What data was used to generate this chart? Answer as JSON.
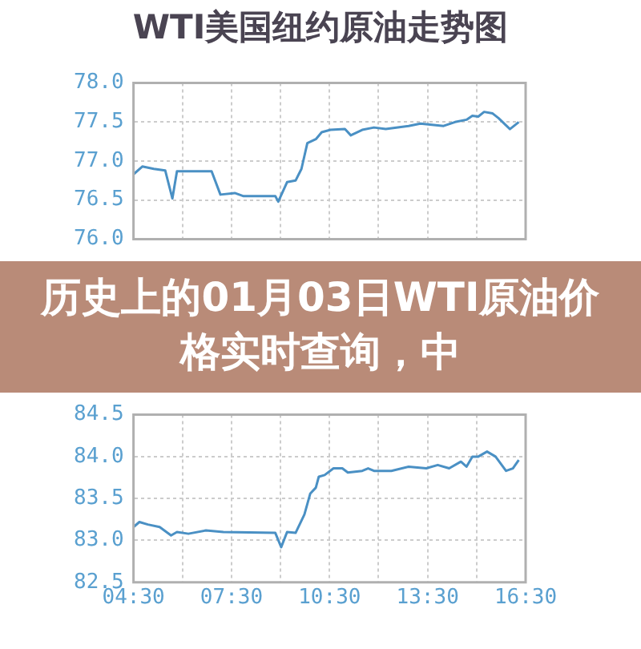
{
  "chart_data": [
    {
      "type": "line",
      "title": "WTI美国纽约原油走势图",
      "xlim": [
        4.5,
        16.5
      ],
      "ylim": [
        76.0,
        78.0
      ],
      "yticks": [
        {
          "value": 76,
          "label": "76.0"
        },
        {
          "value": 76.5,
          "label": "76.5"
        },
        {
          "value": 77,
          "label": "77.0"
        },
        {
          "value": 77.5,
          "label": "77.5"
        },
        {
          "value": 78,
          "label": "78.0"
        }
      ],
      "xticks": [
        {
          "value": 4.5,
          "label": null
        },
        {
          "value": 6,
          "label": null
        },
        {
          "value": 7.5,
          "label": null
        },
        {
          "value": 9,
          "label": null
        },
        {
          "value": 10.5,
          "label": null
        },
        {
          "value": 12,
          "label": null
        },
        {
          "value": 13.5,
          "label": null
        },
        {
          "value": 15,
          "label": null
        },
        {
          "value": 16.5,
          "label": null
        }
      ],
      "tick_labels": "y",
      "grid": true,
      "legend": false,
      "x": [
        4.5,
        4.77,
        5.12,
        5.47,
        5.69,
        5.83,
        6.89,
        7.16,
        7.6,
        7.87,
        8.84,
        8.93,
        9.2,
        9.46,
        9.64,
        9.82,
        10.08,
        10.26,
        10.53,
        10.97,
        11.15,
        11.5,
        11.86,
        12.22,
        12.92,
        13.28,
        13.99,
        14.34,
        14.69,
        14.87,
        15.05,
        15.23,
        15.49,
        15.67,
        16.02,
        16.29
      ],
      "series": [
        {
          "color": "#4a90c4",
          "values": [
            76.83,
            76.93,
            76.9,
            76.88,
            76.52,
            76.87,
            76.87,
            76.57,
            76.59,
            76.55,
            76.55,
            76.48,
            76.73,
            76.75,
            76.9,
            77.23,
            77.28,
            77.37,
            77.4,
            77.41,
            77.33,
            77.4,
            77.43,
            77.41,
            77.45,
            77.48,
            77.45,
            77.5,
            77.53,
            77.58,
            77.57,
            77.63,
            77.61,
            77.55,
            77.41,
            77.5
          ]
        }
      ]
    },
    {
      "type": "other",
      "title": "历史上的01月03日WTI原油价格实时查询，中"
    },
    {
      "type": "line",
      "xlim": [
        4.5,
        16.5
      ],
      "ylim": [
        82.5,
        84.5
      ],
      "yticks": [
        {
          "value": 82.5,
          "label": "82.5"
        },
        {
          "value": 83,
          "label": "83.0"
        },
        {
          "value": 83.5,
          "label": "83.5"
        },
        {
          "value": 84,
          "label": "84.0"
        },
        {
          "value": 84.5,
          "label": "84.5"
        }
      ],
      "xticks": [
        {
          "value": 4.5,
          "label": "04:30"
        },
        {
          "value": 6,
          "label": null
        },
        {
          "value": 7.5,
          "label": "07:30"
        },
        {
          "value": 9,
          "label": null
        },
        {
          "value": 10.5,
          "label": "10:30"
        },
        {
          "value": 12,
          "label": null
        },
        {
          "value": 13.5,
          "label": "13:30"
        },
        {
          "value": 15,
          "label": null
        },
        {
          "value": 16.5,
          "label": "16:30"
        }
      ],
      "grid": true,
      "legend": false,
      "x": [
        4.5,
        4.68,
        4.94,
        5.3,
        5.65,
        5.83,
        6.18,
        6.72,
        7.25,
        8.84,
        9.02,
        9.2,
        9.46,
        9.73,
        9.91,
        10.08,
        10.17,
        10.35,
        10.62,
        10.89,
        11.06,
        11.5,
        11.68,
        11.86,
        12.39,
        12.92,
        13.46,
        13.81,
        14.16,
        14.52,
        14.69,
        14.87,
        15.05,
        15.32,
        15.58,
        15.9,
        16.11,
        16.29
      ],
      "series": [
        {
          "color": "#4a90c4",
          "values": [
            83.16,
            83.22,
            83.19,
            83.16,
            83.06,
            83.1,
            83.08,
            83.12,
            83.1,
            83.09,
            82.92,
            83.1,
            83.09,
            83.31,
            83.56,
            83.63,
            83.76,
            83.78,
            83.86,
            83.86,
            83.81,
            83.83,
            83.86,
            83.83,
            83.83,
            83.88,
            83.86,
            83.9,
            83.86,
            83.94,
            83.88,
            84.0,
            84.0,
            84.06,
            84.0,
            83.83,
            83.86,
            83.96
          ]
        }
      ]
    }
  ]
}
